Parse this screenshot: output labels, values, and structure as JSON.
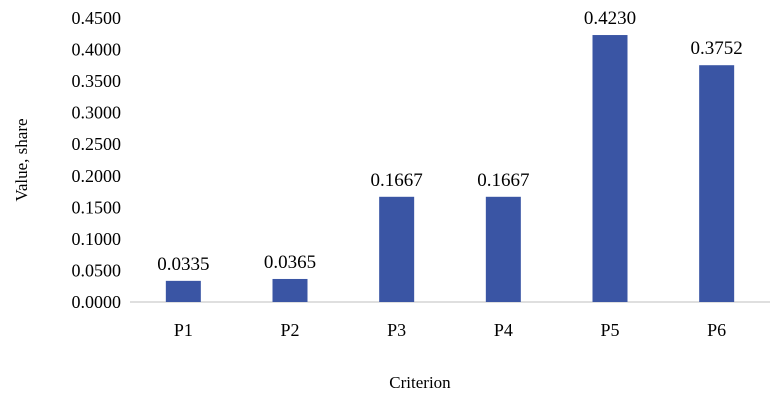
{
  "chart_data": {
    "type": "bar",
    "title": "",
    "xlabel": "Criterion",
    "ylabel": "Value,  share",
    "categories": [
      "P1",
      "P2",
      "P3",
      "P4",
      "P5",
      "P6"
    ],
    "values": [
      0.0335,
      0.0365,
      0.1667,
      0.1667,
      0.423,
      0.3752
    ],
    "data_labels": [
      "0.0335",
      "0.0365",
      "0.1667",
      "0.1667",
      "0.4230",
      "0.3752"
    ],
    "ylim": [
      0,
      0.45
    ],
    "y_ticks": [
      "0.0000",
      "0.0500",
      "0.1000",
      "0.1500",
      "0.2000",
      "0.2500",
      "0.3000",
      "0.3500",
      "0.4000",
      "0.4500"
    ],
    "grid": false,
    "legend": "none",
    "bar_color": "#3A55A4",
    "axis_color": "#BFBFBF"
  }
}
